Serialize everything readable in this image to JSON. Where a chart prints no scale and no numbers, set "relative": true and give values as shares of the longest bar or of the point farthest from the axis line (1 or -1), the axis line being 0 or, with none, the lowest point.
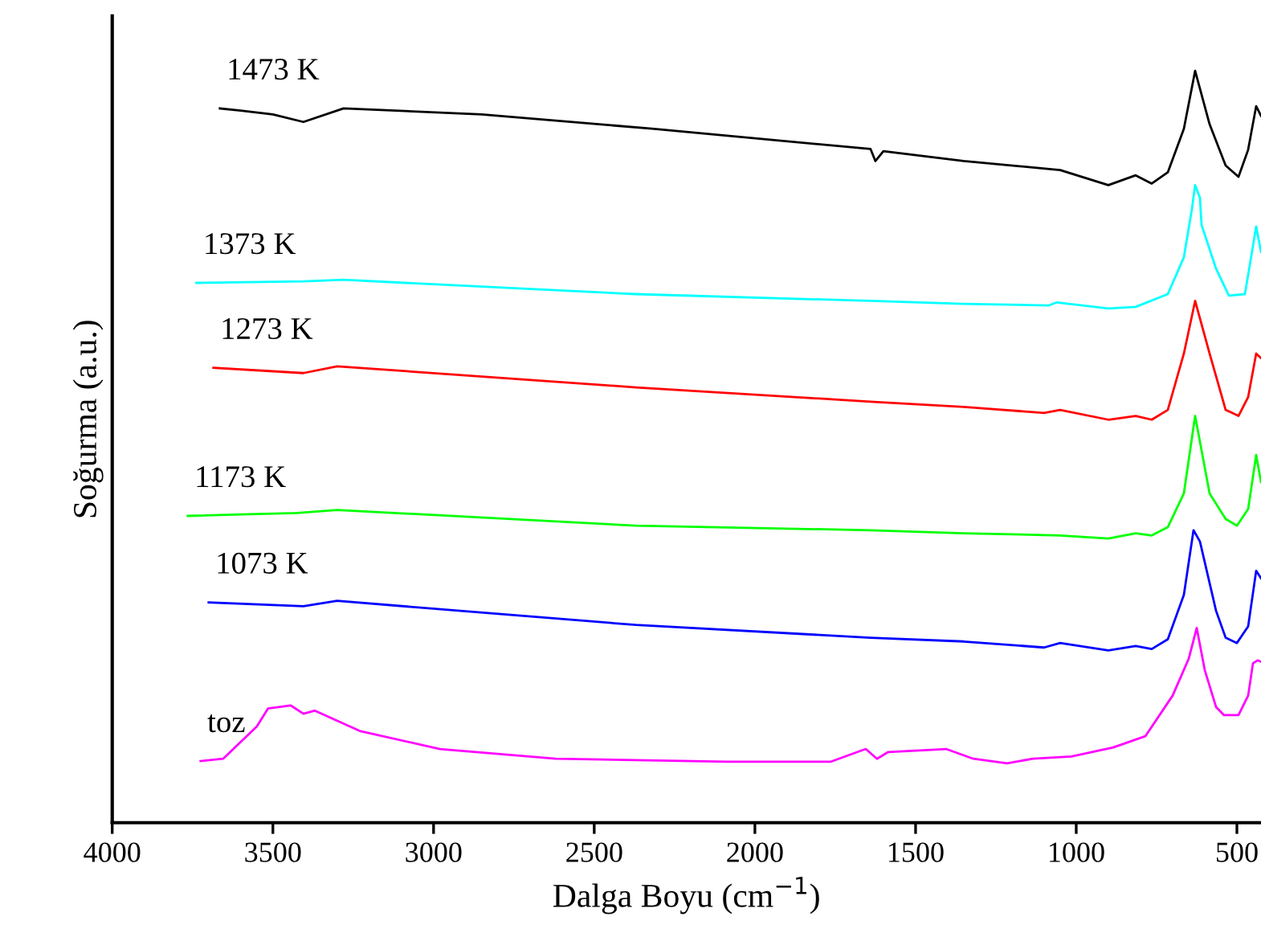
{
  "chart_data": {
    "type": "line",
    "relative": true,
    "xlabel": "Dalga Boyu (cm$^{−1}$)",
    "ylabel": "Soğurma (a.u.)",
    "xlim": [
      4000,
      425
    ],
    "xticks": [
      4000,
      3500,
      3000,
      2500,
      2000,
      1500,
      1000,
      500
    ],
    "tick_labels": "x",
    "grid": false,
    "legend": false,
    "line_style": "solid",
    "marker": "none",
    "series": [
      {
        "name": "1473 K",
        "color": "#000000",
        "x": [
          3665,
          3600,
          3500,
          3405,
          3280,
          2850,
          2320,
          1640,
          1625,
          1600,
          1350,
          1050,
          900,
          815,
          765,
          715,
          665,
          630,
          585,
          535,
          495,
          465,
          440,
          425
        ],
        "values": [
          0.95,
          0.947,
          0.942,
          0.932,
          0.95,
          0.942,
          0.923,
          0.896,
          0.88,
          0.893,
          0.88,
          0.868,
          0.848,
          0.861,
          0.85,
          0.865,
          0.923,
          1.0,
          0.929,
          0.874,
          0.859,
          0.895,
          0.953,
          0.94
        ]
      },
      {
        "name": "1373 K",
        "color": "#00ffff",
        "x": [
          3738,
          3405,
          3280,
          2370,
          1640,
          1350,
          1085,
          1060,
          900,
          815,
          715,
          665,
          640,
          630,
          615,
          610,
          565,
          525,
          475,
          450,
          440,
          425
        ],
        "values": [
          0.718,
          0.72,
          0.722,
          0.703,
          0.694,
          0.69,
          0.688,
          0.692,
          0.684,
          0.686,
          0.703,
          0.752,
          0.816,
          0.848,
          0.831,
          0.795,
          0.737,
          0.701,
          0.703,
          0.767,
          0.793,
          0.759
        ]
      },
      {
        "name": "1273 K",
        "color": "#ff0000",
        "x": [
          3685,
          3405,
          3300,
          2370,
          1640,
          1350,
          1100,
          1050,
          900,
          815,
          765,
          715,
          665,
          630,
          585,
          535,
          495,
          465,
          440,
          425
        ],
        "values": [
          0.605,
          0.598,
          0.607,
          0.579,
          0.56,
          0.553,
          0.545,
          0.549,
          0.536,
          0.541,
          0.536,
          0.549,
          0.624,
          0.694,
          0.624,
          0.549,
          0.541,
          0.566,
          0.624,
          0.618
        ]
      },
      {
        "name": "1173 K",
        "color": "#00ff00",
        "x": [
          3765,
          3425,
          3300,
          2370,
          1640,
          1350,
          1050,
          900,
          815,
          765,
          715,
          665,
          630,
          585,
          535,
          500,
          465,
          440,
          425
        ],
        "values": [
          0.408,
          0.412,
          0.416,
          0.395,
          0.389,
          0.385,
          0.382,
          0.378,
          0.385,
          0.382,
          0.393,
          0.438,
          0.541,
          0.438,
          0.404,
          0.395,
          0.417,
          0.489,
          0.453
        ]
      },
      {
        "name": "1073 K",
        "color": "#0000ff",
        "x": [
          3700,
          3405,
          3300,
          2370,
          1640,
          1350,
          1100,
          1050,
          900,
          815,
          765,
          715,
          665,
          635,
          615,
          565,
          535,
          500,
          465,
          440,
          425
        ],
        "values": [
          0.293,
          0.288,
          0.295,
          0.263,
          0.246,
          0.241,
          0.233,
          0.239,
          0.229,
          0.235,
          0.231,
          0.244,
          0.303,
          0.389,
          0.374,
          0.282,
          0.246,
          0.239,
          0.261,
          0.335,
          0.325
        ]
      },
      {
        "name": "toz",
        "color": "#ff00ff",
        "x": [
          3725,
          3655,
          3550,
          3515,
          3445,
          3405,
          3370,
          3230,
          2980,
          2620,
          2085,
          1765,
          1655,
          1620,
          1585,
          1405,
          1320,
          1215,
          1135,
          1015,
          885,
          785,
          700,
          650,
          625,
          600,
          565,
          540,
          495,
          465,
          450,
          435,
          425
        ],
        "values": [
          0.082,
          0.085,
          0.128,
          0.152,
          0.156,
          0.145,
          0.149,
          0.122,
          0.098,
          0.085,
          0.081,
          0.081,
          0.098,
          0.085,
          0.094,
          0.098,
          0.085,
          0.079,
          0.085,
          0.088,
          0.1,
          0.115,
          0.169,
          0.218,
          0.259,
          0.203,
          0.154,
          0.143,
          0.143,
          0.169,
          0.212,
          0.216,
          0.214
        ]
      }
    ]
  }
}
